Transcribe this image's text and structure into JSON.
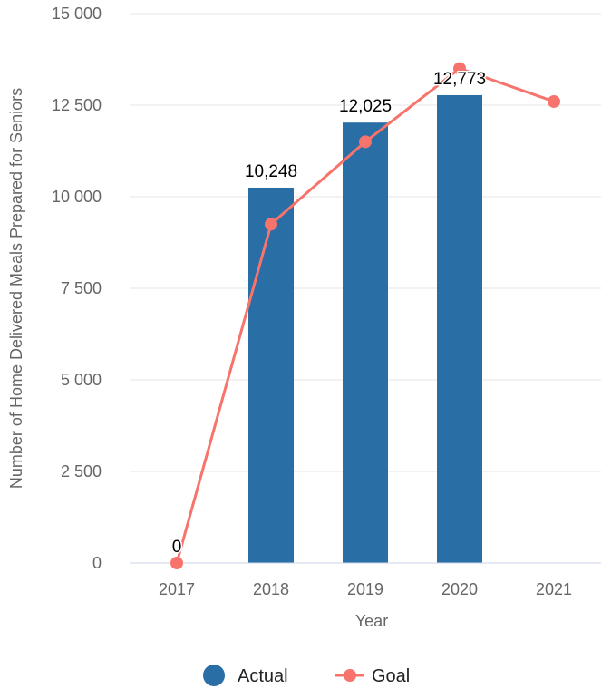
{
  "chart_data": {
    "type": "bar",
    "categories": [
      "2017",
      "2018",
      "2019",
      "2020",
      "2021"
    ],
    "series": [
      {
        "name": "Actual",
        "type": "bar",
        "color": "#2a6ea6",
        "values": [
          0,
          10248,
          12025,
          12773,
          null
        ],
        "data_labels": [
          "0",
          "10,248",
          "12,025",
          "12,773",
          ""
        ]
      },
      {
        "name": "Goal",
        "type": "line",
        "color": "#f7736b",
        "values": [
          0,
          9250,
          11500,
          13500,
          12600
        ]
      }
    ],
    "xlabel": "Year",
    "ylabel": "Number of Home Delivered Meals Prepared for Seniors",
    "ylim": [
      0,
      15000
    ],
    "yticks": [
      0,
      2500,
      5000,
      7500,
      10000,
      12500,
      15000
    ],
    "ytick_labels": [
      "0",
      "2 500",
      "5 000",
      "7 500",
      "10 000",
      "12 500",
      "15 000"
    ],
    "grid": true,
    "legend_position": "bottom-center"
  }
}
